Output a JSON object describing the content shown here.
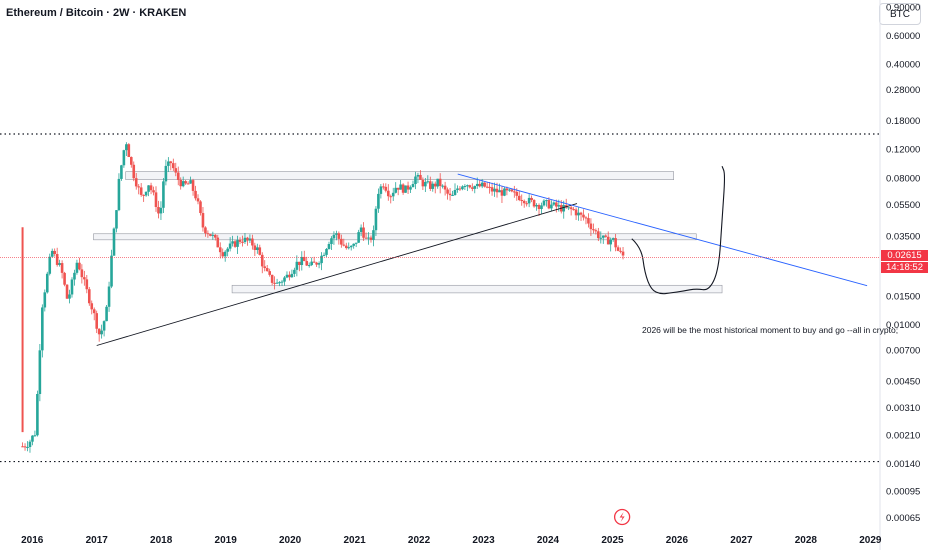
{
  "header": {
    "title": "Ethereum / Bitcoin · 2W · KRAKEN",
    "currency_button": "BTC"
  },
  "price_label": {
    "price": "0.02615",
    "countdown": "14:18:52",
    "color": "#f23645"
  },
  "annotation": "2026 will be the most historical moment to buy and go --all in crypto;",
  "chart_data": {
    "type": "candlestick",
    "symbol": "ETHBTC",
    "interval": "2W",
    "exchange": "KRAKEN",
    "yscale": "log",
    "ylim": [
      0.00055,
      1.0
    ],
    "xlim": [
      2015.5,
      2029.15
    ],
    "y_ticks": [
      "0.90000",
      "0.60000",
      "0.40000",
      "0.28000",
      "0.18000",
      "0.12000",
      "0.08000",
      "0.05500",
      "0.03500",
      "0.02200",
      "0.01500",
      "0.01000",
      "0.00700",
      "0.00450",
      "0.00310",
      "0.00210",
      "0.00140",
      "0.00095",
      "0.00065"
    ],
    "x_ticks": [
      "2016",
      "2017",
      "2018",
      "2019",
      "2020",
      "2021",
      "2022",
      "2023",
      "2024",
      "2025",
      "2026",
      "2027",
      "2028",
      "2029"
    ],
    "last_price": 0.02615,
    "up_color": "#26a69a",
    "down_color": "#ef5350",
    "price_path": [
      [
        2015.85,
        0.0018
      ],
      [
        2015.95,
        0.0019
      ],
      [
        2016.05,
        0.0022
      ],
      [
        2016.15,
        0.013
      ],
      [
        2016.3,
        0.029
      ],
      [
        2016.45,
        0.022
      ],
      [
        2016.55,
        0.014
      ],
      [
        2016.7,
        0.025
      ],
      [
        2016.85,
        0.016
      ],
      [
        2016.95,
        0.012
      ],
      [
        2017.05,
        0.0085
      ],
      [
        2017.15,
        0.012
      ],
      [
        2017.25,
        0.032
      ],
      [
        2017.35,
        0.08
      ],
      [
        2017.45,
        0.14
      ],
      [
        2017.55,
        0.09
      ],
      [
        2017.7,
        0.06
      ],
      [
        2017.8,
        0.075
      ],
      [
        2017.9,
        0.06
      ],
      [
        2017.98,
        0.045
      ],
      [
        2018.05,
        0.09
      ],
      [
        2018.15,
        0.1
      ],
      [
        2018.25,
        0.08
      ],
      [
        2018.35,
        0.072
      ],
      [
        2018.45,
        0.075
      ],
      [
        2018.55,
        0.06
      ],
      [
        2018.65,
        0.04
      ],
      [
        2018.8,
        0.035
      ],
      [
        2018.95,
        0.028
      ],
      [
        2019.1,
        0.031
      ],
      [
        2019.25,
        0.034
      ],
      [
        2019.4,
        0.032
      ],
      [
        2019.5,
        0.029
      ],
      [
        2019.6,
        0.022
      ],
      [
        2019.7,
        0.019
      ],
      [
        2019.8,
        0.018
      ],
      [
        2019.95,
        0.02
      ],
      [
        2020.1,
        0.024
      ],
      [
        2020.2,
        0.025
      ],
      [
        2020.3,
        0.023
      ],
      [
        2020.4,
        0.024
      ],
      [
        2020.5,
        0.027
      ],
      [
        2020.6,
        0.033
      ],
      [
        2020.7,
        0.037
      ],
      [
        2020.8,
        0.032
      ],
      [
        2020.9,
        0.029
      ],
      [
        2021.0,
        0.031
      ],
      [
        2021.1,
        0.04
      ],
      [
        2021.2,
        0.032
      ],
      [
        2021.3,
        0.037
      ],
      [
        2021.35,
        0.065
      ],
      [
        2021.45,
        0.075
      ],
      [
        2021.55,
        0.063
      ],
      [
        2021.65,
        0.072
      ],
      [
        2021.8,
        0.068
      ],
      [
        2021.95,
        0.082
      ],
      [
        2022.05,
        0.075
      ],
      [
        2022.2,
        0.071
      ],
      [
        2022.3,
        0.076
      ],
      [
        2022.4,
        0.067
      ],
      [
        2022.5,
        0.06
      ],
      [
        2022.6,
        0.07
      ],
      [
        2022.7,
        0.075
      ],
      [
        2022.8,
        0.073
      ],
      [
        2022.9,
        0.071
      ],
      [
        2023.0,
        0.072
      ],
      [
        2023.1,
        0.068
      ],
      [
        2023.25,
        0.066
      ],
      [
        2023.4,
        0.065
      ],
      [
        2023.55,
        0.062
      ],
      [
        2023.7,
        0.058
      ],
      [
        2023.85,
        0.055
      ],
      [
        2023.95,
        0.056
      ],
      [
        2024.1,
        0.054
      ],
      [
        2024.25,
        0.052
      ],
      [
        2024.4,
        0.051
      ],
      [
        2024.5,
        0.047
      ],
      [
        2024.6,
        0.045
      ],
      [
        2024.7,
        0.039
      ],
      [
        2024.8,
        0.035
      ],
      [
        2024.9,
        0.033
      ],
      [
        2025.0,
        0.034
      ],
      [
        2025.1,
        0.028
      ],
      [
        2025.2,
        0.026
      ]
    ],
    "support_zones": [
      {
        "x0": 2017.45,
        "x1": 2025.95,
        "y0": 0.0785,
        "y1": 0.088
      },
      {
        "x0": 2016.95,
        "x1": 2026.3,
        "y0": 0.0335,
        "y1": 0.0365
      },
      {
        "x0": 2019.1,
        "x1": 2026.7,
        "y0": 0.0158,
        "y1": 0.0176
      }
    ],
    "trendlines": [
      {
        "points": [
          [
            2017.0,
            0.0075
          ],
          [
            2024.45,
            0.056
          ]
        ],
        "color": "#131722"
      },
      {
        "points": [
          [
            2022.6,
            0.085
          ],
          [
            2028.95,
            0.0175
          ]
        ],
        "color": "#2962ff"
      }
    ],
    "horizontal_dotted": [
      0.15,
      0.00145
    ],
    "projection_path": [
      [
        2025.3,
        0.034
      ],
      [
        2025.45,
        0.03
      ],
      [
        2025.5,
        0.021
      ],
      [
        2025.6,
        0.0165
      ],
      [
        2025.75,
        0.0155
      ],
      [
        2025.9,
        0.0158
      ],
      [
        2026.1,
        0.0162
      ],
      [
        2026.3,
        0.0168
      ],
      [
        2026.5,
        0.0163
      ],
      [
        2026.65,
        0.022
      ],
      [
        2026.7,
        0.045
      ],
      [
        2026.75,
        0.085
      ],
      [
        2026.7,
        0.095
      ]
    ],
    "event_marker_x": 2025.15
  }
}
